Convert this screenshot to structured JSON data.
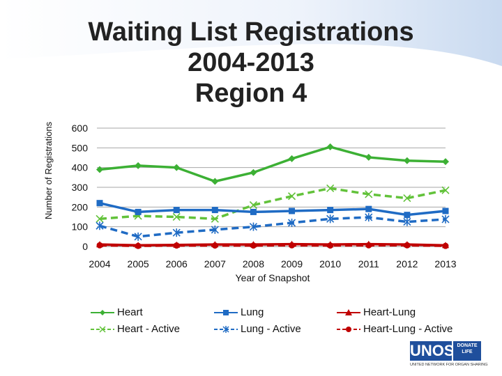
{
  "chart_data": {
    "type": "line",
    "title_lines": [
      "Waiting List Registrations",
      "2004-2013",
      "Region 4"
    ],
    "xlabel": "Year of Snapshot",
    "ylabel": "Number of Registrations",
    "categories": [
      "2004",
      "2005",
      "2006",
      "2007",
      "2008",
      "2009",
      "2010",
      "2011",
      "2012",
      "2013"
    ],
    "ylim": [
      0,
      600
    ],
    "yticks": [
      "0",
      "100",
      "200",
      "300",
      "400",
      "500",
      "600"
    ],
    "grid": true,
    "legend_position": "bottom",
    "series": [
      {
        "name": "Heart",
        "color": "#3cb034",
        "marker": "diamond",
        "dashed": false,
        "values": [
          390,
          410,
          400,
          330,
          375,
          445,
          505,
          452,
          435,
          430
        ]
      },
      {
        "name": "Heart - Active",
        "color": "#62c23a",
        "marker": "x",
        "dashed": true,
        "values": [
          140,
          155,
          150,
          140,
          210,
          255,
          295,
          265,
          245,
          285
        ]
      },
      {
        "name": "Lung",
        "color": "#1f6bc4",
        "marker": "square",
        "dashed": false,
        "values": [
          220,
          175,
          185,
          185,
          175,
          180,
          185,
          190,
          160,
          180
        ]
      },
      {
        "name": "Lung - Active",
        "color": "#1f6bc4",
        "marker": "star",
        "dashed": true,
        "values": [
          105,
          50,
          70,
          85,
          100,
          120,
          140,
          148,
          125,
          138
        ]
      },
      {
        "name": "Heart-Lung",
        "color": "#c00000",
        "marker": "triangle",
        "dashed": false,
        "values": [
          10,
          6,
          8,
          10,
          10,
          12,
          10,
          12,
          10,
          6
        ]
      },
      {
        "name": "Heart-Lung - Active",
        "color": "#c00000",
        "marker": "circle",
        "dashed": true,
        "values": [
          6,
          3,
          5,
          5,
          5,
          6,
          5,
          6,
          6,
          3
        ]
      }
    ]
  },
  "logo": {
    "main": "UNOS",
    "side": "DONATE LIFE",
    "sub": "UNITED NETWORK FOR ORGAN SHARING"
  }
}
